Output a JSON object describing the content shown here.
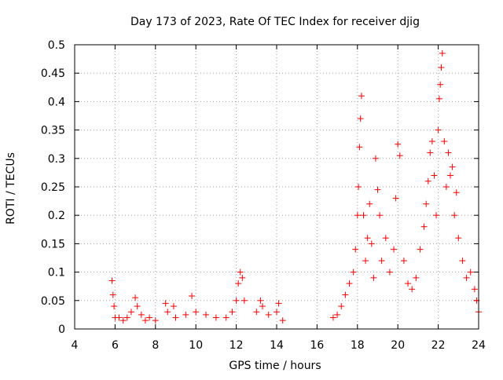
{
  "chart_data": {
    "type": "scatter",
    "title": "Day 173 of 2023, Rate Of TEC Index for receiver djig",
    "xlabel": "GPS time / hours",
    "ylabel": "ROTI / TECUs",
    "xlim": [
      4,
      24
    ],
    "ylim": [
      0,
      0.5
    ],
    "grid": true,
    "marker": "+",
    "color": "#ff0000",
    "x_ticks": [
      4,
      6,
      8,
      10,
      12,
      14,
      16,
      18,
      20,
      22,
      24
    ],
    "x_tick_labels": [
      "4",
      "6",
      "8",
      "10",
      "12",
      "14",
      "16",
      "18",
      "20",
      "22",
      "24"
    ],
    "y_ticks": [
      0,
      0.05,
      0.1,
      0.15,
      0.2,
      0.25,
      0.3,
      0.35,
      0.4,
      0.45,
      0.5
    ],
    "y_tick_labels": [
      "0",
      "0.05",
      "0.1",
      "0.15",
      "0.2",
      "0.25",
      "0.3",
      "0.35",
      "0.4",
      "0.45",
      "0.5"
    ],
    "series": [
      {
        "name": "ROTI",
        "x": [
          5.85,
          5.9,
          5.95,
          6.0,
          6.2,
          6.4,
          6.6,
          6.8,
          7.0,
          7.1,
          7.3,
          7.5,
          7.7,
          8.0,
          8.5,
          8.6,
          8.9,
          9.0,
          9.5,
          9.8,
          10.0,
          10.5,
          11.0,
          11.5,
          11.8,
          12.0,
          12.1,
          12.2,
          12.3,
          12.4,
          13.0,
          13.2,
          13.3,
          13.6,
          14.0,
          14.1,
          14.3,
          16.8,
          17.0,
          17.2,
          17.4,
          17.6,
          17.8,
          17.9,
          18.0,
          18.05,
          18.1,
          18.15,
          18.2,
          18.3,
          18.4,
          18.5,
          18.6,
          18.7,
          18.8,
          18.9,
          19.0,
          19.1,
          19.2,
          19.4,
          19.6,
          19.8,
          19.9,
          20.0,
          20.1,
          20.3,
          20.5,
          20.7,
          20.9,
          21.1,
          21.3,
          21.4,
          21.5,
          21.6,
          21.7,
          21.8,
          21.9,
          22.0,
          22.05,
          22.1,
          22.15,
          22.2,
          22.3,
          22.4,
          22.5,
          22.6,
          22.7,
          22.8,
          22.9,
          23.0,
          23.2,
          23.4,
          23.6,
          23.8,
          23.9,
          24.0
        ],
        "y": [
          0.085,
          0.06,
          0.04,
          0.02,
          0.02,
          0.015,
          0.02,
          0.03,
          0.055,
          0.04,
          0.025,
          0.015,
          0.02,
          0.015,
          0.045,
          0.03,
          0.04,
          0.02,
          0.025,
          0.058,
          0.03,
          0.025,
          0.02,
          0.02,
          0.03,
          0.05,
          0.08,
          0.1,
          0.09,
          0.05,
          0.03,
          0.05,
          0.04,
          0.025,
          0.03,
          0.045,
          0.015,
          0.02,
          0.025,
          0.04,
          0.06,
          0.08,
          0.1,
          0.14,
          0.2,
          0.25,
          0.32,
          0.37,
          0.41,
          0.2,
          0.12,
          0.16,
          0.22,
          0.15,
          0.09,
          0.3,
          0.245,
          0.2,
          0.12,
          0.16,
          0.1,
          0.14,
          0.23,
          0.325,
          0.305,
          0.12,
          0.08,
          0.07,
          0.09,
          0.14,
          0.18,
          0.22,
          0.26,
          0.31,
          0.33,
          0.27,
          0.2,
          0.35,
          0.405,
          0.43,
          0.46,
          0.485,
          0.33,
          0.25,
          0.31,
          0.27,
          0.285,
          0.2,
          0.24,
          0.16,
          0.12,
          0.09,
          0.1,
          0.07,
          0.05,
          0.03
        ]
      }
    ]
  }
}
